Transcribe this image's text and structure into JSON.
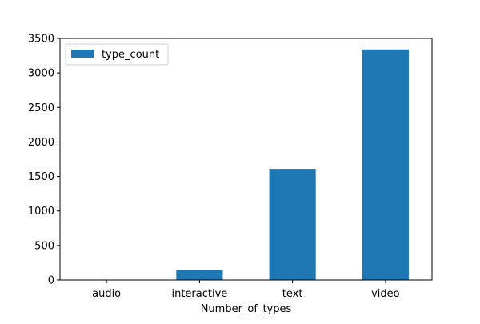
{
  "chart_data": {
    "type": "bar",
    "title": "",
    "xlabel": "Number_of_types",
    "ylabel": "",
    "categories": [
      "audio",
      "interactive",
      "text",
      "video"
    ],
    "series": [
      {
        "name": "type_count",
        "values": [
          3,
          150,
          1610,
          3340
        ],
        "color": "#1f77b4"
      }
    ],
    "ylim": [
      0,
      3500
    ],
    "yticks": [
      0,
      500,
      1000,
      1500,
      2000,
      2500,
      3000,
      3500
    ],
    "grid": false,
    "legend_position": "top-left"
  }
}
